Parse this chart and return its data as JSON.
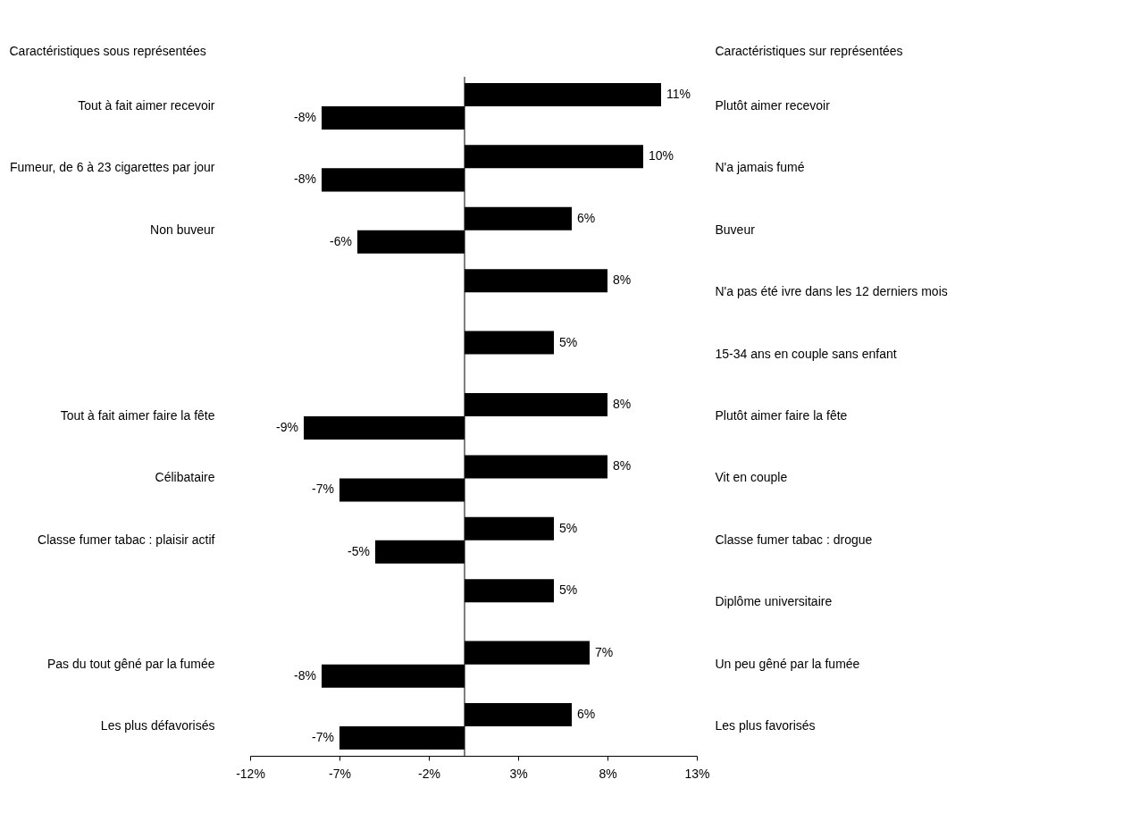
{
  "chart_data": {
    "type": "bar",
    "orientation": "horizontal",
    "ylabel": "Caractéristiques sous représentées",
    "y2label": "Caractéristiques sur représentées",
    "categories": [
      "Tout à fait aimer recevoir",
      "Fumeur, de 6 à 23 cigarettes par jour",
      "Non buveur",
      null,
      null,
      "Tout à fait aimer faire la fête",
      "Célibataire",
      "Classe fumer tabac : plaisir actif",
      null,
      "Pas du tout gêné par la fumée",
      "Les plus défavorisés"
    ],
    "y2_categories": [
      "Plutôt aimer recevoir",
      "N'a jamais fumé",
      "Buveur",
      "N'a pas été ivre dans les 12 derniers mois",
      "15-34 ans en couple sans enfant",
      "Plutôt aimer faire la fête",
      "Vit en couple",
      "Classe fumer tabac : drogue",
      "Diplôme universitaire",
      "Un peu gêné par la fumée",
      "Les plus favorisés"
    ],
    "series": [
      {
        "color": "#000000",
        "values": [
          11,
          10,
          6,
          8,
          5,
          8,
          8,
          5,
          5,
          7,
          6
        ],
        "value_labels": [
          "11%",
          "10%",
          "6%",
          "8%",
          "5%",
          "8%",
          "8%",
          "5%",
          "5%",
          "7%",
          "6%"
        ]
      },
      {
        "color": "#000000",
        "values": [
          -8,
          -8,
          -6,
          null,
          null,
          -9,
          -7,
          -5,
          null,
          -8,
          -7
        ],
        "value_labels": [
          "-8%",
          "-8%",
          "-6%",
          null,
          null,
          "-9%",
          "-7%",
          "-5%",
          null,
          "-8%",
          "-7%"
        ]
      }
    ],
    "xlim": [
      -12,
      13
    ],
    "xticks": [
      {
        "value": -12,
        "label": "-12%"
      },
      {
        "value": -7,
        "label": "-7%"
      },
      {
        "value": -2,
        "label": "-2%"
      },
      {
        "value": 3,
        "label": "3%"
      },
      {
        "value": 8,
        "label": "8%"
      },
      {
        "value": 13,
        "label": "13%"
      }
    ],
    "ref_lines": [
      {
        "axis": "x",
        "value": 0
      }
    ]
  }
}
